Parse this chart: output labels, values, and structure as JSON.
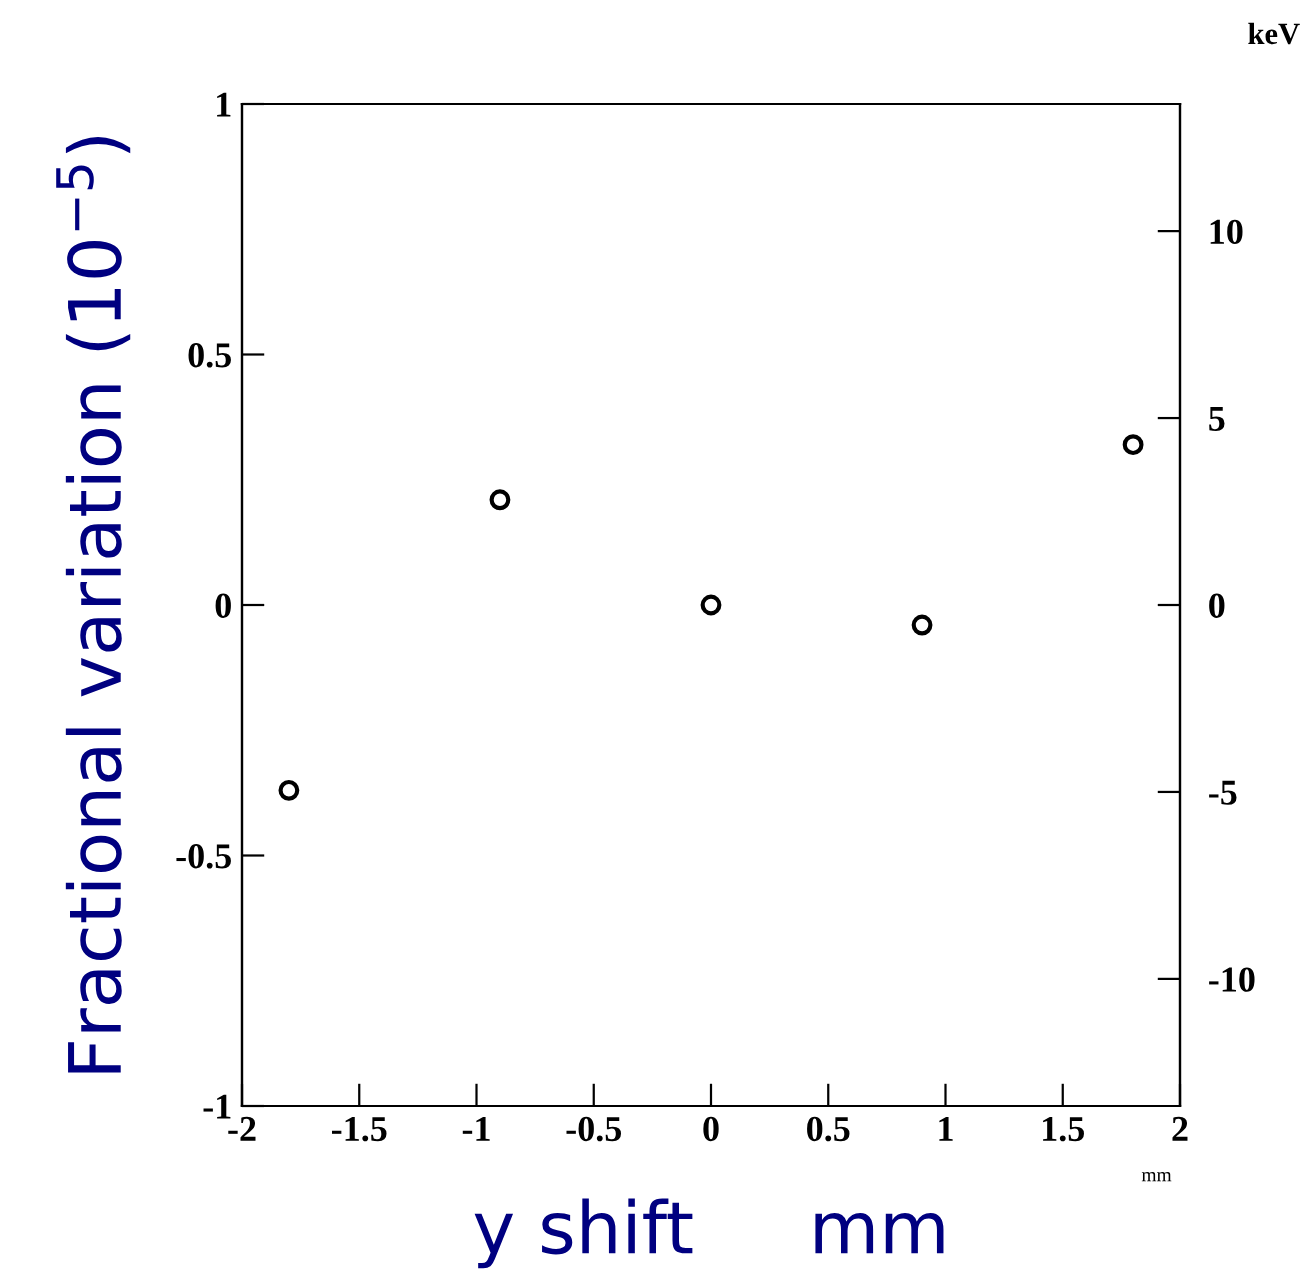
{
  "chart_data": {
    "type": "scatter",
    "xlabel": "y shift     mm",
    "ylabel": "Fractional variation (10$^{−5}$)",
    "y2label": "keV",
    "x": [
      -1.8,
      -0.9,
      0,
      0.9,
      1.8
    ],
    "series": [
      {
        "color": "#000000",
        "values": [
          -0.37,
          0.21,
          0,
          -0.04,
          0.32
        ]
      }
    ],
    "marker": "circle",
    "xlim": [
      -2,
      2
    ],
    "xticks": [
      -2,
      -1.5,
      -1,
      -0.5,
      0,
      0.5,
      1,
      1.5,
      2
    ],
    "ylim": [
      -1,
      1
    ],
    "yticks": [
      -1,
      -0.5,
      0,
      0.5,
      1
    ],
    "y2lim": [
      -13.4,
      13.4
    ],
    "y2ticks": [
      -10,
      -5,
      0,
      5,
      10
    ],
    "annotations": [
      "mm"
    ],
    "grid": false,
    "legend": false
  }
}
